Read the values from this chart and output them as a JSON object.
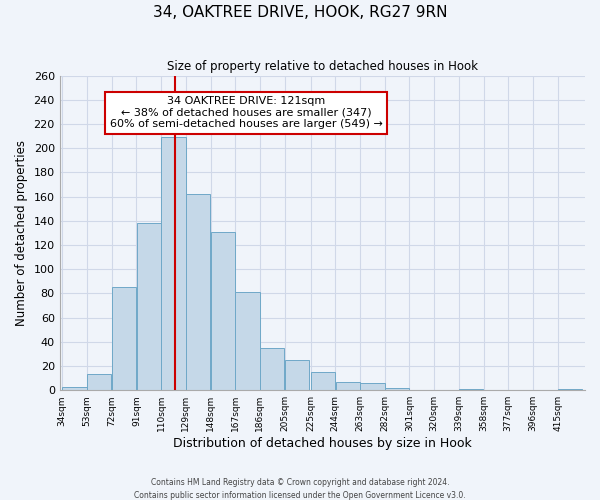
{
  "title": "34, OAKTREE DRIVE, HOOK, RG27 9RN",
  "subtitle": "Size of property relative to detached houses in Hook",
  "xlabel": "Distribution of detached houses by size in Hook",
  "ylabel": "Number of detached properties",
  "footer_line1": "Contains HM Land Registry data © Crown copyright and database right 2024.",
  "footer_line2": "Contains public sector information licensed under the Open Government Licence v3.0.",
  "bin_labels": [
    "34sqm",
    "53sqm",
    "72sqm",
    "91sqm",
    "110sqm",
    "129sqm",
    "148sqm",
    "167sqm",
    "186sqm",
    "205sqm",
    "225sqm",
    "244sqm",
    "263sqm",
    "282sqm",
    "301sqm",
    "320sqm",
    "339sqm",
    "358sqm",
    "377sqm",
    "396sqm",
    "415sqm"
  ],
  "bar_values": [
    3,
    13,
    85,
    138,
    209,
    162,
    131,
    81,
    35,
    25,
    15,
    7,
    6,
    2,
    0,
    0,
    1,
    0,
    0,
    0,
    1
  ],
  "bar_color": "#c5d8e8",
  "bar_edge_color": "#6fa8c8",
  "grid_color": "#d0d8e8",
  "background_color": "#f0f4fa",
  "annotation_line1": "34 OAKTREE DRIVE: 121sqm",
  "annotation_line2": "← 38% of detached houses are smaller (347)",
  "annotation_line3": "60% of semi-detached houses are larger (549) →",
  "annotation_box_color": "#ffffff",
  "annotation_box_edge_color": "#cc0000",
  "vline_x": 121,
  "vline_color": "#cc0000",
  "ylim": [
    0,
    260
  ],
  "yticks": [
    0,
    20,
    40,
    60,
    80,
    100,
    120,
    140,
    160,
    180,
    200,
    220,
    240,
    260
  ],
  "bin_width": 19
}
